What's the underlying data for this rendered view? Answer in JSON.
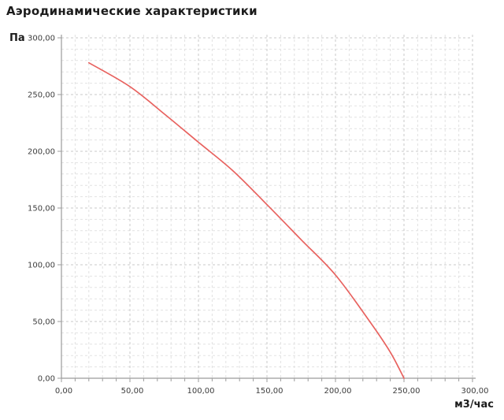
{
  "title": "Аэродинамические характеристики",
  "chart_data": {
    "type": "line",
    "title": "Аэродинамические характеристики",
    "xlabel": "м3/час",
    "ylabel": "Па",
    "xlim": [
      0,
      300
    ],
    "ylim": [
      0,
      300
    ],
    "x_tick_step": 50,
    "y_tick_step": 50,
    "minor_grid_step": 10,
    "grid": "dashed",
    "legend": "none",
    "x_tick_labels": [
      "0,00",
      "50,00",
      "100,00",
      "150,00",
      "200,00",
      "250,00",
      "300,00"
    ],
    "y_tick_labels": [
      "0,00",
      "50,00",
      "100,00",
      "150,00",
      "200,00",
      "250,00",
      "300,00"
    ],
    "series": [
      {
        "x": [
          20,
          50,
          75,
          100,
          125,
          150,
          175,
          200,
          225,
          240,
          250
        ],
        "y": [
          278,
          257,
          233,
          208,
          183,
          153,
          122,
          91,
          50,
          23,
          0
        ],
        "color": "#e8625f"
      }
    ]
  },
  "colors": {
    "curve": "#e8625f",
    "axis": "#9b9b9b",
    "grid_minor": "#e2e2e2",
    "grid_major": "#c9c9c9",
    "tick_label": "#3d3d3d",
    "heading": "#1c1c1c"
  }
}
